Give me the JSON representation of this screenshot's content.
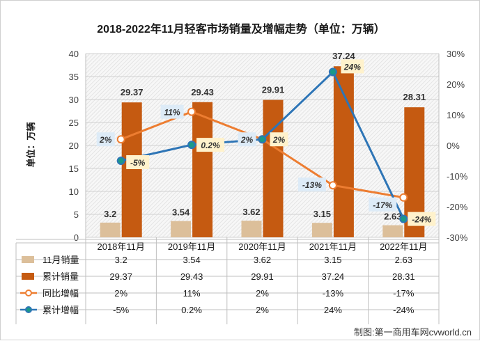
{
  "chart_data": {
    "type": "bar+line",
    "title": "2018-2022年11月轻客市场销量及增幅走势（单位：万辆）",
    "ylabel": "单位：万辆",
    "ylim": [
      0,
      40
    ],
    "y_ticks": [
      "0",
      "5",
      "10",
      "15",
      "20",
      "25",
      "30",
      "35",
      "40"
    ],
    "y2lim": [
      -30,
      30
    ],
    "y2_ticks": [
      "30%",
      "20%",
      "10%",
      "0%",
      "-10%",
      "-20%",
      "-30%"
    ],
    "categories": [
      "2018年11月",
      "2019年11月",
      "2020年11月",
      "2021年11月",
      "2022年11月"
    ],
    "series": [
      {
        "name": "11月销量",
        "type": "bar",
        "color": "#dcbf9a",
        "values": [
          3.2,
          3.54,
          3.62,
          3.15,
          2.63
        ],
        "labels": [
          "3.2",
          "3.54",
          "3.62",
          "3.15",
          "2.63"
        ]
      },
      {
        "name": "累计销量",
        "type": "bar",
        "color": "#c55a11",
        "values": [
          29.37,
          29.43,
          29.91,
          37.24,
          28.31
        ],
        "labels": [
          "29.37",
          "29.43",
          "29.91",
          "37.24",
          "28.31"
        ]
      },
      {
        "name": "同比增幅",
        "type": "line",
        "color": "#ed7d31",
        "axis": "right",
        "values": [
          2,
          11,
          2,
          -13,
          -17
        ],
        "labels": [
          "2%",
          "11%",
          "2%",
          "-13%",
          "-17%"
        ]
      },
      {
        "name": "累计增幅",
        "type": "line",
        "color": "#2e75b6",
        "axis": "right",
        "values": [
          -5,
          0.2,
          2,
          24,
          -24
        ],
        "labels": [
          "-5%",
          "0.2%",
          "2%",
          "24%",
          "-24%"
        ]
      }
    ],
    "legend": "data-table-bottom",
    "grid": true
  },
  "credit": "制图:第一商用车网cvworld.cn"
}
